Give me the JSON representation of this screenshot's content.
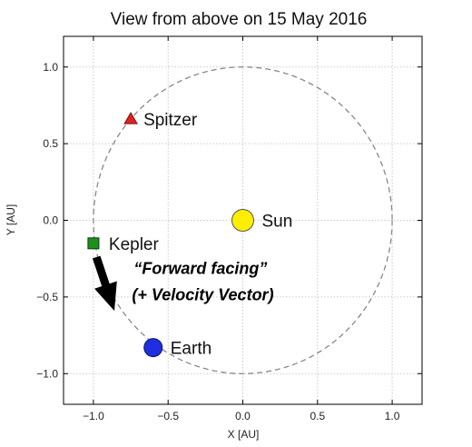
{
  "chart_data": {
    "type": "scatter",
    "title": "View from above on 15 May 2016",
    "xlabel": "X [AU]",
    "ylabel": "Y [AU]",
    "xlim": [
      -1.2,
      1.2
    ],
    "ylim": [
      -1.2,
      1.2
    ],
    "xticks": [
      -1.0,
      -0.5,
      0.0,
      0.5,
      1.0
    ],
    "xtick_labels": [
      "−1.0",
      "−0.5",
      "0.0",
      "0.5",
      "1.0"
    ],
    "yticks": [
      1.0,
      0.5,
      0.0,
      -0.5,
      -1.0
    ],
    "ytick_labels": [
      "1.0",
      "0.5",
      "0.0",
      "−0.5",
      "−1.0"
    ],
    "grid": true,
    "orbit": {
      "center": [
        0,
        0
      ],
      "radius": 1.0,
      "style": "dashed",
      "color": "#888888"
    },
    "points": [
      {
        "label": "Sun",
        "x": 0.0,
        "y": 0.0,
        "marker": "circle",
        "color": "#ffee00",
        "edge": "#555555"
      },
      {
        "label": "Spitzer",
        "x": -0.75,
        "y": 0.66,
        "marker": "triangle",
        "color": "#dd2222",
        "edge": "#771111"
      },
      {
        "label": "Kepler",
        "x": -1.0,
        "y": -0.15,
        "marker": "square",
        "color": "#1f8f1f",
        "edge": "#0b3d0b"
      },
      {
        "label": "Earth",
        "x": -0.6,
        "y": -0.83,
        "marker": "circle",
        "color": "#1f2fe0",
        "edge": "#0a1266"
      }
    ],
    "arrow": {
      "from": [
        -0.98,
        -0.24
      ],
      "to": [
        -0.86,
        -0.59
      ],
      "color": "#000000"
    },
    "annotation": {
      "line1": "“Forward facing”",
      "line2": "(+ Velocity Vector)",
      "x": -0.73,
      "y": -0.35
    }
  }
}
